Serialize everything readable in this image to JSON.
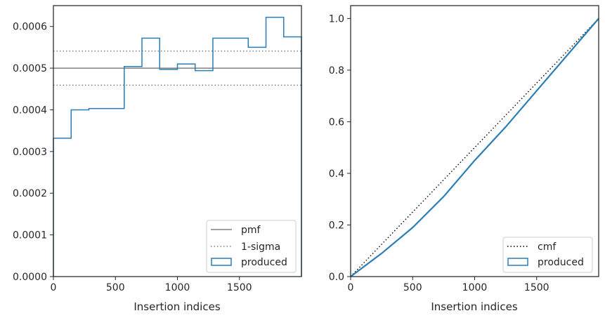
{
  "chart_data": [
    {
      "type": "histogram",
      "xlabel": "Insertion indices",
      "ylabel": "",
      "xlim": [
        0,
        2000
      ],
      "ylim": [
        0,
        0.00065
      ],
      "xticks": [
        0,
        500,
        1000,
        1500
      ],
      "xtick_labels": [
        "0",
        "500",
        "1000",
        "1500"
      ],
      "yticks": [
        0,
        0.0001,
        0.0002,
        0.0003,
        0.0004,
        0.0005,
        0.0006
      ],
      "ytick_labels": [
        "0.0000",
        "0.0001",
        "0.0002",
        "0.0003",
        "0.0004",
        "0.0005",
        "0.0006"
      ],
      "legend_position": "lower-right",
      "pmf": 0.0005,
      "sigma_band": [
        0.000459,
        0.000541
      ],
      "bin_edges": [
        0,
        143,
        286,
        571,
        714,
        857,
        1000,
        1143,
        1286,
        1571,
        1714,
        1857,
        2000
      ],
      "densities": [
        0.000332,
        0.0004,
        0.000403,
        0.000504,
        0.000572,
        0.000497,
        0.00051,
        0.000494,
        0.000572,
        0.00055,
        0.000622,
        0.000575
      ],
      "legend": [
        {
          "label": "pmf",
          "style": "solid",
          "color": "#808080"
        },
        {
          "label": "1-sigma",
          "style": "dotted",
          "color": "#808080"
        },
        {
          "label": "produced",
          "style": "step",
          "color": "#2a7db5"
        }
      ]
    },
    {
      "type": "line",
      "xlabel": "Insertion indices",
      "ylabel": "",
      "xlim": [
        0,
        2000
      ],
      "ylim": [
        0,
        1.05
      ],
      "xticks": [
        0,
        500,
        1000,
        1500
      ],
      "xtick_labels": [
        "0",
        "500",
        "1000",
        "1500"
      ],
      "yticks": [
        0,
        0.2,
        0.4,
        0.6,
        0.8,
        1.0
      ],
      "ytick_labels": [
        "0.0",
        "0.2",
        "0.4",
        "0.6",
        "0.8",
        "1.0"
      ],
      "legend_position": "lower-right",
      "cmf_x": [
        0,
        2000
      ],
      "cmf_y": [
        0,
        1.0
      ],
      "produced_x": [
        0,
        250,
        500,
        750,
        1000,
        1250,
        1500,
        1750,
        2000
      ],
      "produced_y": [
        0,
        0.09,
        0.19,
        0.31,
        0.45,
        0.58,
        0.72,
        0.86,
        1.0
      ],
      "legend": [
        {
          "label": "cmf",
          "style": "dotted",
          "color": "#000000"
        },
        {
          "label": "produced",
          "style": "step",
          "color": "#2a7db5"
        }
      ]
    }
  ]
}
